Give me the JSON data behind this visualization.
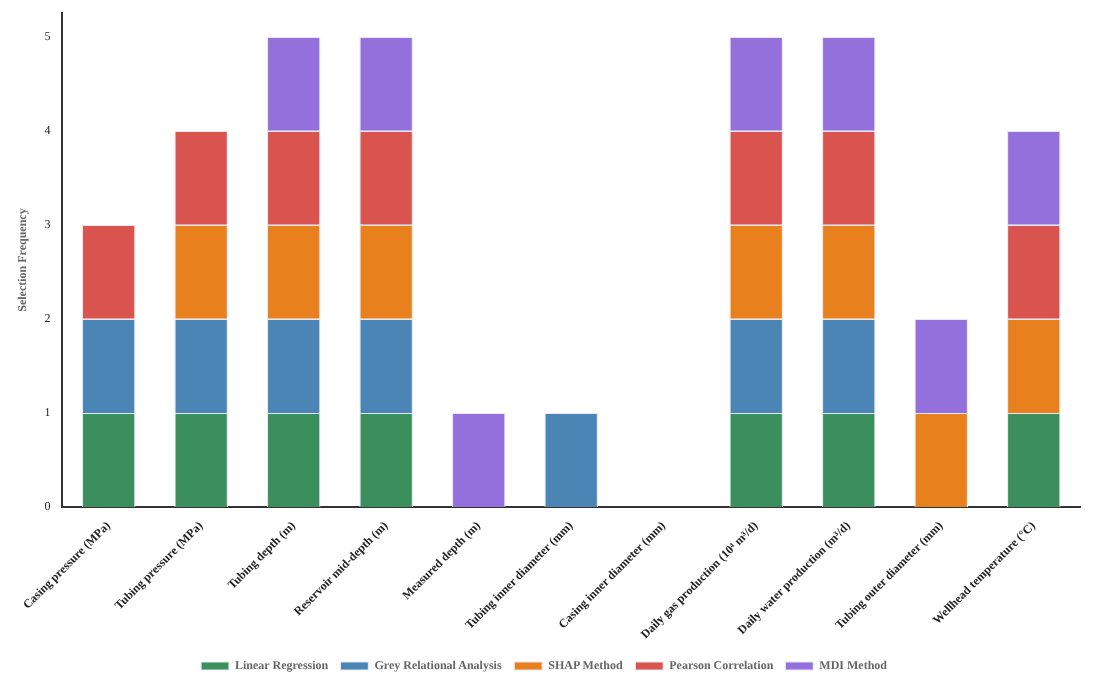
{
  "chart_data": {
    "type": "bar",
    "stacked": true,
    "ylabel": "Selection Frequency",
    "categories": [
      "Casing pressure (MPa)",
      "Tubing pressure (MPa)",
      "Tubing depth (m)",
      "Reservoir mid-depth (m)",
      "Measured depth (m)",
      "Tubing inner diameter (mm)",
      "Casing inner diameter (mm)",
      "Daily gas production (10⁴ m³/d)",
      "Daily water production (m³/d)",
      "Tubing outer diameter (mm)",
      "Wellhead temperature (°C)"
    ],
    "series": [
      {
        "name": "Linear Regression",
        "color": "#3a8f5c",
        "values": [
          1,
          1,
          1,
          1,
          0,
          0,
          0,
          1,
          1,
          0,
          1
        ]
      },
      {
        "name": "Grey Relational Analysis",
        "color": "#4a85b5",
        "values": [
          1,
          1,
          1,
          1,
          0,
          1,
          0,
          1,
          1,
          0,
          0
        ]
      },
      {
        "name": "SHAP Method",
        "color": "#e8801e",
        "values": [
          0,
          1,
          1,
          1,
          0,
          0,
          0,
          1,
          1,
          1,
          1
        ]
      },
      {
        "name": "Pearson Correlation",
        "color": "#d9534f",
        "values": [
          1,
          1,
          1,
          1,
          0,
          0,
          0,
          1,
          1,
          0,
          1
        ]
      },
      {
        "name": "MDI Method",
        "color": "#9370db",
        "values": [
          0,
          0,
          1,
          1,
          1,
          0,
          0,
          1,
          1,
          1,
          1
        ]
      }
    ],
    "ylim": [
      0,
      5.25
    ],
    "yticks": [
      0,
      1,
      2,
      3,
      4,
      5
    ],
    "grid": false,
    "legend": "bottom"
  }
}
